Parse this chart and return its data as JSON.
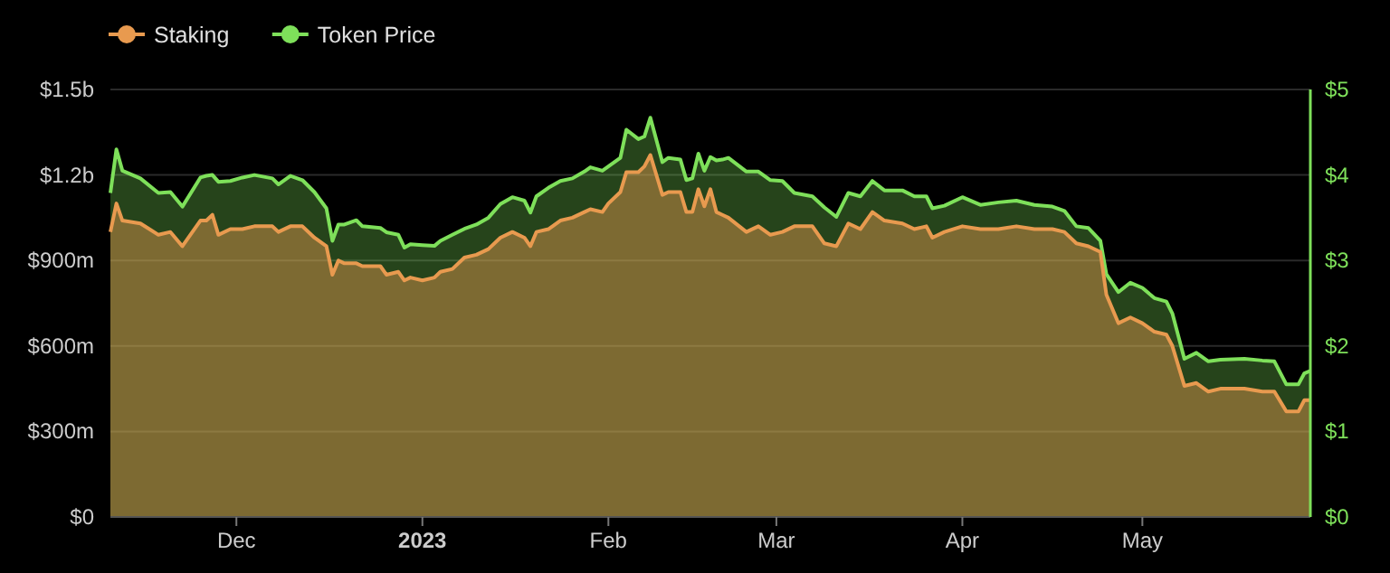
{
  "chart_data": {
    "type": "area",
    "legend": "top left",
    "grid": "y",
    "x": [
      "2022-11-10",
      "2022-11-11",
      "2022-11-12",
      "2022-11-15",
      "2022-11-18",
      "2022-11-20",
      "2022-11-22",
      "2022-11-25",
      "2022-11-26",
      "2022-11-27",
      "2022-11-28",
      "2022-11-30",
      "2022-12-02",
      "2022-12-04",
      "2022-12-07",
      "2022-12-08",
      "2022-12-10",
      "2022-12-12",
      "2022-12-14",
      "2022-12-16",
      "2022-12-17",
      "2022-12-18",
      "2022-12-19",
      "2022-12-21",
      "2022-12-22",
      "2022-12-25",
      "2022-12-26",
      "2022-12-28",
      "2022-12-29",
      "2022-12-30",
      "2023-01-01",
      "2023-01-03",
      "2023-01-04",
      "2023-01-06",
      "2023-01-08",
      "2023-01-10",
      "2023-01-12",
      "2023-01-14",
      "2023-01-16",
      "2023-01-18",
      "2023-01-19",
      "2023-01-20",
      "2023-01-22",
      "2023-01-24",
      "2023-01-26",
      "2023-01-28",
      "2023-01-29",
      "2023-01-31",
      "2023-02-01",
      "2023-02-03",
      "2023-02-04",
      "2023-02-06",
      "2023-02-07",
      "2023-02-08",
      "2023-02-10",
      "2023-02-11",
      "2023-02-13",
      "2023-02-14",
      "2023-02-15",
      "2023-02-16",
      "2023-02-17",
      "2023-02-18",
      "2023-02-19",
      "2023-02-20",
      "2023-02-21",
      "2023-02-24",
      "2023-02-26",
      "2023-02-28",
      "2023-03-02",
      "2023-03-04",
      "2023-03-07",
      "2023-03-09",
      "2023-03-11",
      "2023-03-13",
      "2023-03-15",
      "2023-03-17",
      "2023-03-19",
      "2023-03-22",
      "2023-03-24",
      "2023-03-26",
      "2023-03-27",
      "2023-03-29",
      "2023-04-01",
      "2023-04-04",
      "2023-04-07",
      "2023-04-10",
      "2023-04-13",
      "2023-04-16",
      "2023-04-18",
      "2023-04-20",
      "2023-04-22",
      "2023-04-24",
      "2023-04-25",
      "2023-04-27",
      "2023-04-29",
      "2023-05-01",
      "2023-05-03",
      "2023-05-05",
      "2023-05-06",
      "2023-05-08",
      "2023-05-10",
      "2023-05-12",
      "2023-05-14",
      "2023-05-18",
      "2023-05-21",
      "2023-05-23",
      "2023-05-25",
      "2023-05-27",
      "2023-05-28",
      "2023-05-29"
    ],
    "xlim": [
      "2022-11-10",
      "2023-05-29"
    ],
    "xticks": [
      {
        "value": "2022-12-01",
        "label": "Dec"
      },
      {
        "value": "2023-01-01",
        "label": "2023"
      },
      {
        "value": "2023-02-01",
        "label": "Feb"
      },
      {
        "value": "2023-03-01",
        "label": "Mar"
      },
      {
        "value": "2023-04-01",
        "label": "Apr"
      },
      {
        "value": "2023-05-01",
        "label": "May"
      }
    ],
    "ylim": [
      0,
      1500000000
    ],
    "yticks": [
      {
        "value": 0,
        "label": "$0"
      },
      {
        "value": 300000000,
        "label": "$300m"
      },
      {
        "value": 600000000,
        "label": "$600m"
      },
      {
        "value": 900000000,
        "label": "$900m"
      },
      {
        "value": 1200000000,
        "label": "$1.2b"
      },
      {
        "value": 1500000000,
        "label": "$1.5b"
      }
    ],
    "y2lim": [
      0,
      5
    ],
    "y2ticks": [
      {
        "value": 0,
        "label": "$0"
      },
      {
        "value": 1,
        "label": "$1"
      },
      {
        "value": 2,
        "label": "$2"
      },
      {
        "value": 3,
        "label": "$3"
      },
      {
        "value": 4,
        "label": "$4"
      },
      {
        "value": 5,
        "label": "$5"
      }
    ],
    "series": [
      {
        "name": "Token Price",
        "color": "#7ee05a",
        "axis": "y2",
        "values": [
          3.79,
          4.3,
          4.05,
          3.96,
          3.79,
          3.8,
          3.63,
          3.97,
          3.99,
          4.0,
          3.92,
          3.93,
          3.97,
          4.0,
          3.96,
          3.89,
          3.99,
          3.94,
          3.8,
          3.61,
          3.23,
          3.42,
          3.42,
          3.47,
          3.4,
          3.38,
          3.33,
          3.3,
          3.15,
          3.19,
          3.18,
          3.17,
          3.23,
          3.3,
          3.37,
          3.42,
          3.5,
          3.66,
          3.74,
          3.7,
          3.56,
          3.75,
          3.85,
          3.93,
          3.96,
          4.04,
          4.09,
          4.05,
          4.1,
          4.2,
          4.53,
          4.42,
          4.45,
          4.67,
          4.15,
          4.2,
          4.18,
          3.94,
          3.96,
          4.25,
          4.05,
          4.21,
          4.17,
          4.18,
          4.2,
          4.04,
          4.04,
          3.94,
          3.93,
          3.79,
          3.75,
          3.62,
          3.51,
          3.79,
          3.75,
          3.93,
          3.82,
          3.82,
          3.75,
          3.75,
          3.61,
          3.64,
          3.74,
          3.65,
          3.68,
          3.7,
          3.65,
          3.63,
          3.58,
          3.4,
          3.38,
          3.23,
          2.84,
          2.63,
          2.74,
          2.68,
          2.56,
          2.52,
          2.38,
          1.85,
          1.92,
          1.82,
          1.84,
          1.85,
          1.83,
          1.82,
          1.55,
          1.55,
          1.68,
          1.71
        ]
      },
      {
        "name": "Staking",
        "color": "#e89a4f",
        "values": [
          1000000000,
          1100000000,
          1040000000,
          1030000000,
          990000000,
          1000000000,
          950000000,
          1040000000,
          1040000000,
          1060000000,
          990000000,
          1010000000,
          1010000000,
          1020000000,
          1020000000,
          1000000000,
          1020000000,
          1020000000,
          980000000,
          950000000,
          850000000,
          900000000,
          890000000,
          890000000,
          880000000,
          880000000,
          850000000,
          860000000,
          830000000,
          840000000,
          830000000,
          840000000,
          860000000,
          870000000,
          910000000,
          920000000,
          940000000,
          980000000,
          1000000000,
          980000000,
          950000000,
          1000000000,
          1010000000,
          1040000000,
          1050000000,
          1070000000,
          1080000000,
          1070000000,
          1100000000,
          1140000000,
          1210000000,
          1210000000,
          1230000000,
          1270000000,
          1130000000,
          1140000000,
          1140000000,
          1070000000,
          1070000000,
          1150000000,
          1090000000,
          1150000000,
          1070000000,
          1060000000,
          1050000000,
          1000000000,
          1020000000,
          990000000,
          1000000000,
          1020000000,
          1020000000,
          960000000,
          950000000,
          1030000000,
          1010000000,
          1070000000,
          1040000000,
          1030000000,
          1010000000,
          1020000000,
          980000000,
          1000000000,
          1020000000,
          1010000000,
          1010000000,
          1020000000,
          1010000000,
          1010000000,
          1000000000,
          960000000,
          950000000,
          930000000,
          780000000,
          680000000,
          700000000,
          680000000,
          650000000,
          640000000,
          600000000,
          460000000,
          470000000,
          440000000,
          450000000,
          450000000,
          440000000,
          440000000,
          370000000,
          370000000,
          410000000,
          410000000
        ]
      }
    ]
  }
}
